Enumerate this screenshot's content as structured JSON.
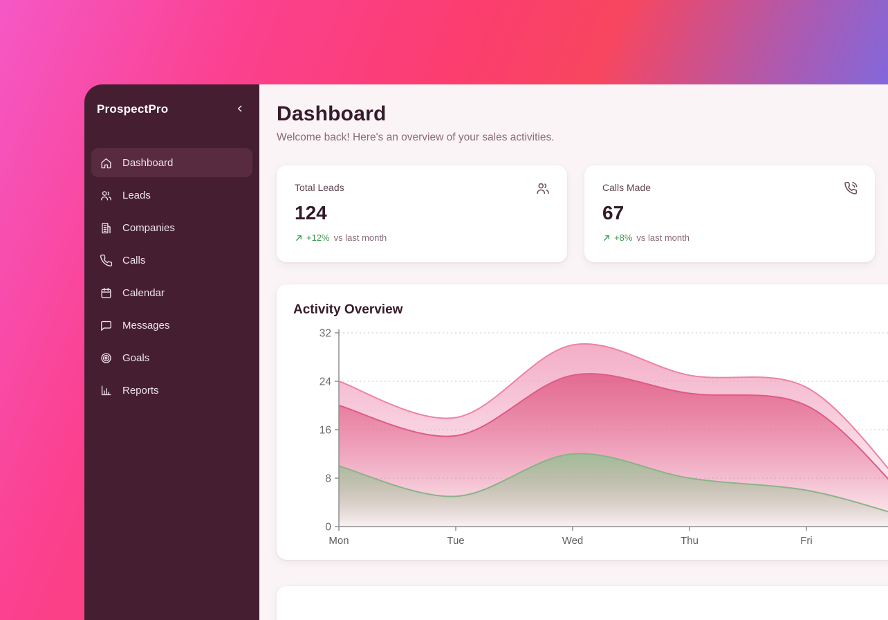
{
  "sidebar": {
    "brand": "ProspectPro",
    "collapse_icon": "chevron-left",
    "items": [
      {
        "label": "Dashboard",
        "icon": "home",
        "active": true
      },
      {
        "label": "Leads",
        "icon": "users",
        "active": false
      },
      {
        "label": "Companies",
        "icon": "building",
        "active": false
      },
      {
        "label": "Calls",
        "icon": "phone",
        "active": false
      },
      {
        "label": "Calendar",
        "icon": "calendar",
        "active": false
      },
      {
        "label": "Messages",
        "icon": "chat",
        "active": false
      },
      {
        "label": "Goals",
        "icon": "target",
        "active": false
      },
      {
        "label": "Reports",
        "icon": "bar-chart",
        "active": false
      }
    ]
  },
  "header": {
    "title": "Dashboard",
    "subtitle": "Welcome back! Here's an overview of your sales activities."
  },
  "stats": [
    {
      "label": "Total Leads",
      "value": "124",
      "icon": "users",
      "trend_icon": "trend-up",
      "trend_value": "+12%",
      "trend_suffix": "vs last month"
    },
    {
      "label": "Calls Made",
      "value": "67",
      "icon": "phone-call",
      "trend_icon": "trend-up",
      "trend_value": "+8%",
      "trend_suffix": "vs last month"
    }
  ],
  "chart_card": {
    "title": "Activity Overview"
  },
  "chart_data": {
    "type": "area",
    "title": "Activity Overview",
    "categories": [
      "Mon",
      "Tue",
      "Wed",
      "Thu",
      "Fri"
    ],
    "series": [
      {
        "name": "light-pink-area",
        "color": "#f09cbb",
        "stroke": "#ec82a8",
        "values": [
          24,
          18,
          30,
          25,
          23
        ]
      },
      {
        "name": "rose-area",
        "color": "#e05a84",
        "stroke": "#e05a84",
        "values": [
          20,
          15,
          25,
          22,
          20
        ]
      },
      {
        "name": "green-area",
        "color": "#9dbf97",
        "stroke": "#8ab388",
        "values": [
          10,
          5,
          12,
          8,
          6
        ]
      }
    ],
    "offscreen_edge_values": {
      "light-pink-area": 7,
      "rose-area": 5.5,
      "green-area": 1.8
    },
    "ylim": [
      0,
      32
    ],
    "yticks": [
      0,
      8,
      16,
      24,
      32
    ],
    "grid": "dotted-horizontal",
    "legend": "none",
    "note": "curves continue past the right edge of the viewport and drop after Fri"
  },
  "colors": {
    "sidebar_bg": "#451f31",
    "sidebar_active_bg": "#592b41",
    "main_bg": "#faf4f6",
    "heading": "#371b2b",
    "muted": "#87687a",
    "trend_green": "#3f9b4f",
    "axis_text": "#6a6a6a",
    "gradient_left": "#f558c6",
    "gradient_mid": "#fb3d6f",
    "gradient_right": "#6d6ff0"
  }
}
